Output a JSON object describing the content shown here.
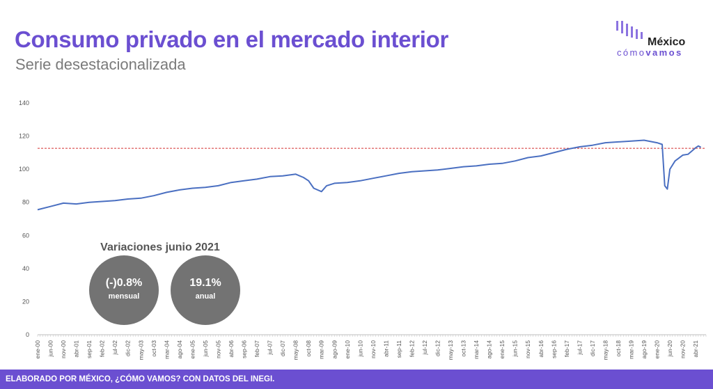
{
  "header": {
    "title": "Consumo privado en el mercado interior",
    "subtitle": "Serie desestacionalizada"
  },
  "logo": {
    "word": "México",
    "sub_light": "cómo",
    "sub_bold": "vamos",
    "icon": "bar-pattern-logo-icon"
  },
  "variations": {
    "title": "Variaciones junio 2021",
    "monthly_value": "(-)0.8%",
    "monthly_label": "mensual",
    "annual_value": "19.1%",
    "annual_label": "anual"
  },
  "footer": {
    "text": "ELABORADO POR MÉXICO, ¿CÓMO VAMOS? CON DATOS DEL INEGI."
  },
  "colors": {
    "accent": "#6b4fd1",
    "line": "#4a6fc1",
    "reference_line": "#d32f2f",
    "circle": "#737373"
  },
  "chart_data": {
    "type": "line",
    "title": "Consumo privado en el mercado interior",
    "subtitle": "Serie desestacionalizada",
    "ylim": [
      0,
      140
    ],
    "yticks": [
      0,
      20,
      40,
      60,
      80,
      100,
      120,
      140
    ],
    "xticks": [
      "ene-00",
      "jun-00",
      "nov-00",
      "abr-01",
      "sep-01",
      "feb-02",
      "jul-02",
      "dic-02",
      "may-03",
      "oct-03",
      "mar-04",
      "ago-04",
      "ene-05",
      "jun-05",
      "nov-05",
      "abr-06",
      "sep-06",
      "feb-07",
      "jul-07",
      "dic-07",
      "may-08",
      "oct-08",
      "mar-09",
      "ago-09",
      "ene-10",
      "jun-10",
      "nov-10",
      "abr-11",
      "sep-11",
      "feb-12",
      "jul-12",
      "dic-12",
      "may-13",
      "oct-13",
      "mar-14",
      "ago-14",
      "ene-15",
      "jun-15",
      "nov-15",
      "abr-16",
      "sep-16",
      "feb-17",
      "jul-17",
      "dic-17",
      "may-18",
      "oct-18",
      "mar-19",
      "ago-19",
      "ene-20",
      "jun-20",
      "nov-20",
      "abr-21"
    ],
    "reference_line": 112.6,
    "grid": false,
    "series": [
      {
        "x": [
          "ene-00",
          "jun-00",
          "nov-00",
          "abr-01",
          "sep-01",
          "feb-02",
          "jul-02",
          "dic-02",
          "may-03",
          "oct-03",
          "mar-04",
          "ago-04",
          "ene-05",
          "jun-05",
          "nov-05",
          "abr-06",
          "sep-06",
          "feb-07",
          "jul-07",
          "dic-07",
          "may-08",
          "ago-08",
          "oct-08",
          "dic-08",
          "mar-09",
          "may-09",
          "ago-09",
          "ene-10",
          "jun-10",
          "nov-10",
          "abr-11",
          "sep-11",
          "feb-12",
          "jul-12",
          "dic-12",
          "may-13",
          "oct-13",
          "mar-14",
          "ago-14",
          "ene-15",
          "jun-15",
          "nov-15",
          "abr-16",
          "sep-16",
          "feb-17",
          "jul-17",
          "dic-17",
          "may-18",
          "oct-18",
          "mar-19",
          "ago-19",
          "ene-20",
          "mar-20",
          "abr-20",
          "may-20",
          "jun-20",
          "ago-20",
          "nov-20",
          "ene-21",
          "abr-21",
          "may-21",
          "jun-21"
        ],
        "values": [
          75.5,
          77.5,
          79.5,
          79,
          80,
          80.5,
          81,
          82,
          82.5,
          84,
          86,
          87.5,
          88.5,
          89,
          90,
          92,
          93,
          94,
          95.5,
          96,
          97,
          95,
          93,
          88.5,
          86.5,
          90,
          91.5,
          92,
          93,
          94.5,
          96,
          97.5,
          98.5,
          99,
          99.5,
          100.5,
          101.5,
          102,
          103,
          103.5,
          105,
          107,
          108,
          110,
          112,
          113.5,
          114.5,
          116,
          116.5,
          117,
          117.5,
          116,
          115,
          90,
          88,
          100,
          105,
          108.5,
          109,
          113,
          114,
          113.2
        ]
      }
    ]
  }
}
